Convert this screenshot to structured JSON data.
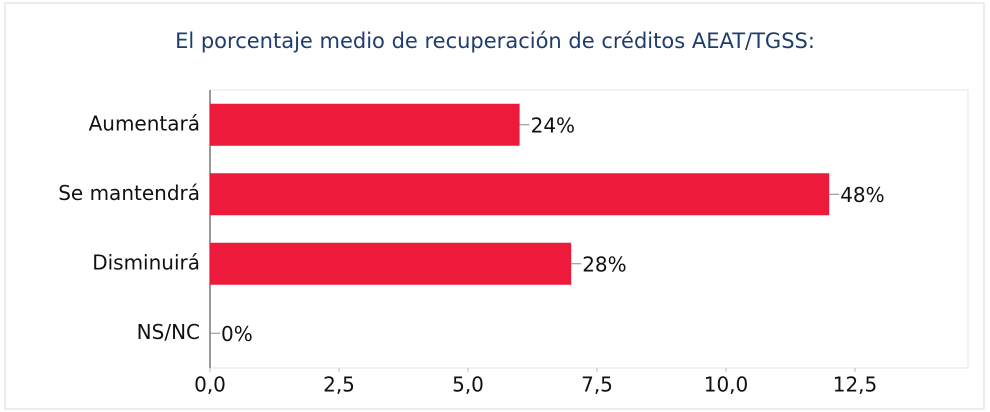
{
  "chart_data": {
    "type": "bar",
    "orientation": "horizontal",
    "title": "El porcentaje medio de recuperación de créditos AEAT/TGSS:",
    "categories": [
      "Aumentará",
      "Se mantendrá",
      "Disminuirá",
      "NS/NC"
    ],
    "values": [
      6,
      12,
      7,
      0
    ],
    "share_labels": [
      "24%",
      "48%",
      "28%",
      "0%"
    ],
    "color": "#ee1a3c",
    "xlim": [
      0,
      12.5
    ],
    "xticks": [
      {
        "value": 0,
        "label": "0,0"
      },
      {
        "value": 2.5,
        "label": "2,5"
      },
      {
        "value": 5,
        "label": "5,0"
      },
      {
        "value": 7.5,
        "label": "7,5"
      },
      {
        "value": 10,
        "label": "10,0"
      },
      {
        "value": 12.5,
        "label": "12,5"
      }
    ],
    "grid": false
  }
}
